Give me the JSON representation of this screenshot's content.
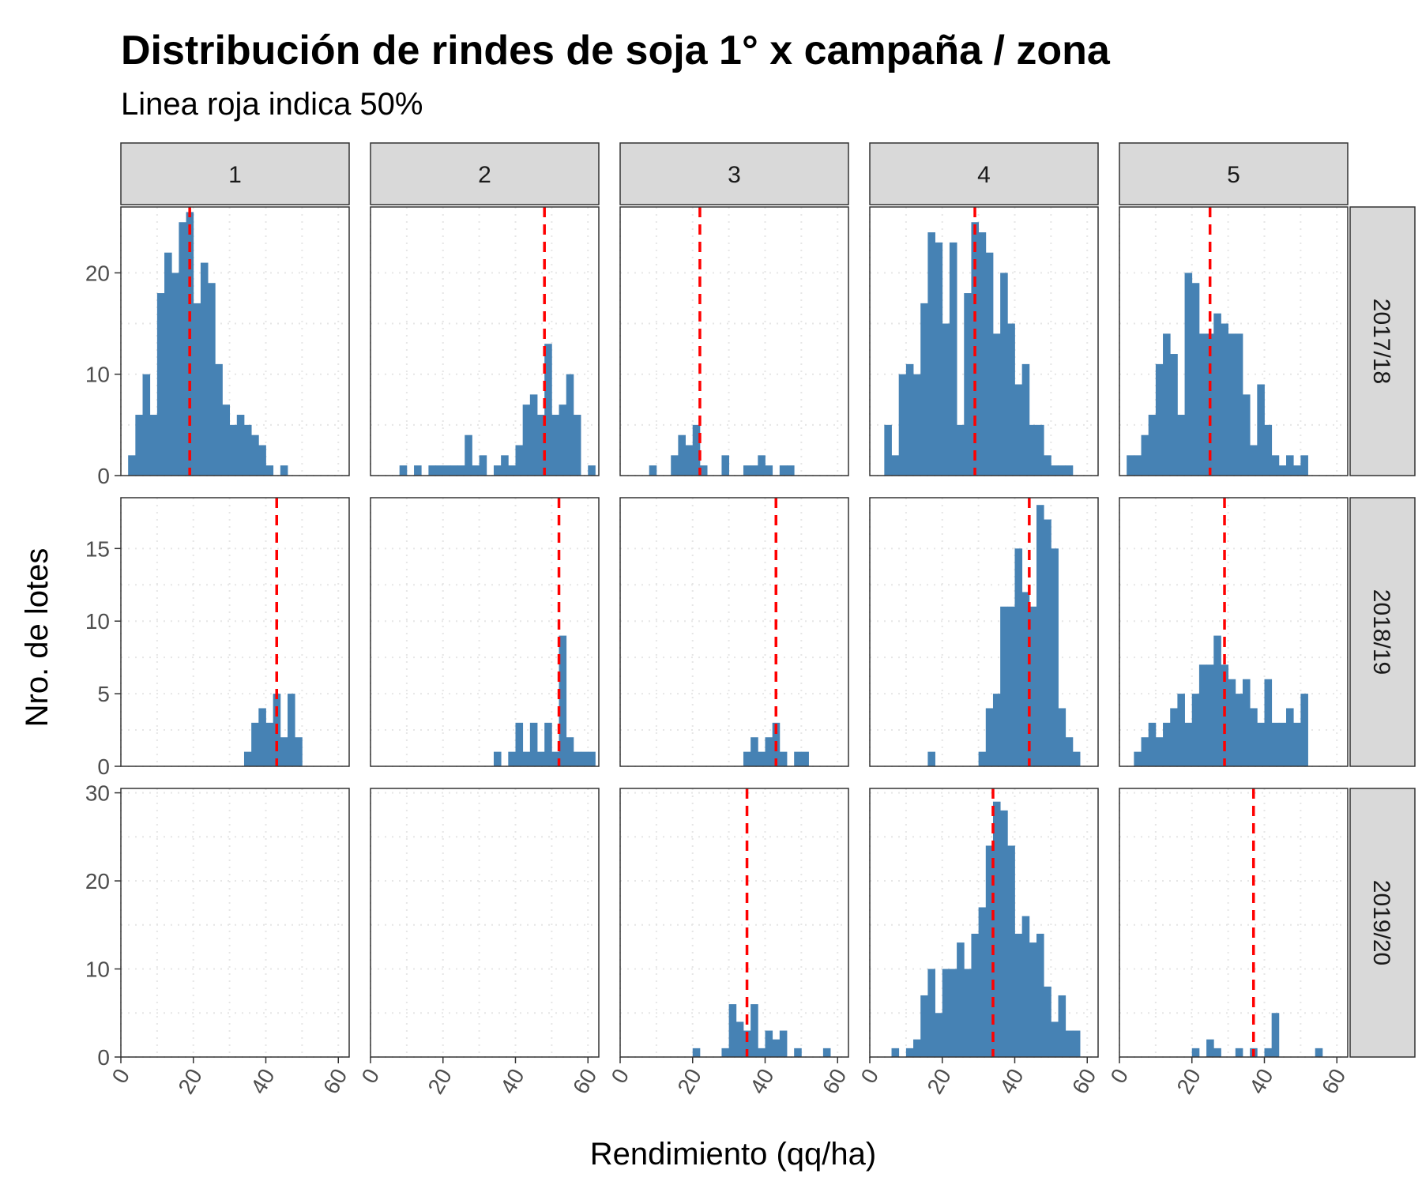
{
  "chart_data": {
    "type": "histogram-facet-grid",
    "title": "Distribución de rindes de soja 1° x campaña / zona",
    "subtitle": "Linea roja indica 50%",
    "xlabel": "Rendimiento (qq/ha)",
    "ylabel": "Nro. de lotes",
    "bin_width": 2,
    "xlim": [
      0,
      63
    ],
    "x_ticks": [
      0,
      20,
      40,
      60
    ],
    "columns": [
      "1",
      "2",
      "3",
      "4",
      "5"
    ],
    "rows": [
      {
        "label": "2017/18",
        "ylim": [
          0,
          26.5
        ],
        "y_ticks": [
          0,
          10,
          20
        ]
      },
      {
        "label": "2018/19",
        "ylim": [
          0,
          18.5
        ],
        "y_ticks": [
          0,
          5,
          10,
          15
        ]
      },
      {
        "label": "2019/20",
        "ylim": [
          0,
          30.5
        ],
        "y_ticks": [
          0,
          10,
          20,
          30
        ]
      }
    ],
    "bar_color": "#4682b4",
    "median_line_color": "#ff0000",
    "panels": [
      [
        {
          "median": 19,
          "bins": [
            [
              2,
              2
            ],
            [
              4,
              6
            ],
            [
              6,
              10
            ],
            [
              8,
              6
            ],
            [
              10,
              18
            ],
            [
              12,
              22
            ],
            [
              14,
              20
            ],
            [
              16,
              25
            ],
            [
              18,
              26
            ],
            [
              20,
              17
            ],
            [
              22,
              21
            ],
            [
              24,
              19
            ],
            [
              26,
              11
            ],
            [
              28,
              7
            ],
            [
              30,
              5
            ],
            [
              32,
              6
            ],
            [
              34,
              5
            ],
            [
              36,
              4
            ],
            [
              38,
              3
            ],
            [
              40,
              1
            ],
            [
              44,
              1
            ]
          ]
        },
        {
          "median": 48,
          "bins": [
            [
              8,
              1
            ],
            [
              12,
              1
            ],
            [
              16,
              1
            ],
            [
              18,
              1
            ],
            [
              20,
              1
            ],
            [
              22,
              1
            ],
            [
              24,
              1
            ],
            [
              26,
              4
            ],
            [
              28,
              1
            ],
            [
              30,
              2
            ],
            [
              34,
              1
            ],
            [
              36,
              2
            ],
            [
              38,
              1
            ],
            [
              40,
              3
            ],
            [
              42,
              7
            ],
            [
              44,
              8
            ],
            [
              46,
              6
            ],
            [
              48,
              13
            ],
            [
              50,
              6
            ],
            [
              52,
              7
            ],
            [
              54,
              10
            ],
            [
              56,
              6
            ],
            [
              60,
              1
            ]
          ]
        },
        {
          "median": 22,
          "bins": [
            [
              8,
              1
            ],
            [
              14,
              2
            ],
            [
              16,
              4
            ],
            [
              18,
              3
            ],
            [
              20,
              5
            ],
            [
              22,
              1
            ],
            [
              28,
              2
            ],
            [
              34,
              1
            ],
            [
              36,
              1
            ],
            [
              38,
              2
            ],
            [
              40,
              1
            ],
            [
              44,
              1
            ],
            [
              46,
              1
            ]
          ]
        },
        {
          "median": 29,
          "bins": [
            [
              4,
              5
            ],
            [
              6,
              2
            ],
            [
              8,
              10
            ],
            [
              10,
              11
            ],
            [
              12,
              10
            ],
            [
              14,
              17
            ],
            [
              16,
              24
            ],
            [
              18,
              23
            ],
            [
              20,
              15
            ],
            [
              22,
              23
            ],
            [
              24,
              5
            ],
            [
              26,
              18
            ],
            [
              28,
              25
            ],
            [
              30,
              24
            ],
            [
              32,
              22
            ],
            [
              34,
              14
            ],
            [
              36,
              20
            ],
            [
              38,
              15
            ],
            [
              40,
              9
            ],
            [
              42,
              11
            ],
            [
              44,
              5
            ],
            [
              46,
              5
            ],
            [
              48,
              2
            ],
            [
              50,
              1
            ],
            [
              52,
              1
            ],
            [
              54,
              1
            ]
          ]
        },
        {
          "median": 25,
          "bins": [
            [
              2,
              2
            ],
            [
              4,
              2
            ],
            [
              6,
              4
            ],
            [
              8,
              6
            ],
            [
              10,
              11
            ],
            [
              12,
              14
            ],
            [
              14,
              12
            ],
            [
              16,
              6
            ],
            [
              18,
              20
            ],
            [
              20,
              19
            ],
            [
              22,
              14
            ],
            [
              24,
              14
            ],
            [
              26,
              16
            ],
            [
              28,
              15
            ],
            [
              30,
              14
            ],
            [
              32,
              14
            ],
            [
              34,
              8
            ],
            [
              36,
              3
            ],
            [
              38,
              9
            ],
            [
              40,
              5
            ],
            [
              42,
              2
            ],
            [
              44,
              1
            ],
            [
              46,
              2
            ],
            [
              48,
              1
            ],
            [
              50,
              2
            ]
          ]
        }
      ],
      [
        {
          "median": 43,
          "bins": [
            [
              34,
              1
            ],
            [
              36,
              3
            ],
            [
              38,
              4
            ],
            [
              40,
              3
            ],
            [
              42,
              5
            ],
            [
              44,
              2
            ],
            [
              46,
              5
            ],
            [
              48,
              2
            ]
          ]
        },
        {
          "median": 52,
          "bins": [
            [
              34,
              1
            ],
            [
              38,
              1
            ],
            [
              40,
              3
            ],
            [
              42,
              1
            ],
            [
              44,
              3
            ],
            [
              46,
              1
            ],
            [
              48,
              3
            ],
            [
              50,
              1
            ],
            [
              52,
              9
            ],
            [
              54,
              2
            ],
            [
              56,
              1
            ],
            [
              58,
              1
            ],
            [
              60,
              1
            ]
          ]
        },
        {
          "median": 43,
          "bins": [
            [
              34,
              1
            ],
            [
              36,
              2
            ],
            [
              38,
              1
            ],
            [
              40,
              2
            ],
            [
              42,
              3
            ],
            [
              44,
              1
            ],
            [
              48,
              1
            ],
            [
              50,
              1
            ]
          ]
        },
        {
          "median": 44,
          "bins": [
            [
              16,
              1
            ],
            [
              30,
              1
            ],
            [
              32,
              4
            ],
            [
              34,
              5
            ],
            [
              36,
              11
            ],
            [
              38,
              11
            ],
            [
              40,
              15
            ],
            [
              42,
              12
            ],
            [
              44,
              11
            ],
            [
              46,
              18
            ],
            [
              48,
              17
            ],
            [
              50,
              15
            ],
            [
              52,
              4
            ],
            [
              54,
              2
            ],
            [
              56,
              1
            ]
          ]
        },
        {
          "median": 29,
          "bins": [
            [
              4,
              1
            ],
            [
              6,
              2
            ],
            [
              8,
              3
            ],
            [
              10,
              2
            ],
            [
              12,
              3
            ],
            [
              14,
              4
            ],
            [
              16,
              5
            ],
            [
              18,
              3
            ],
            [
              20,
              5
            ],
            [
              22,
              7
            ],
            [
              24,
              7
            ],
            [
              26,
              9
            ],
            [
              28,
              7
            ],
            [
              30,
              6
            ],
            [
              32,
              5
            ],
            [
              34,
              6
            ],
            [
              36,
              4
            ],
            [
              38,
              3
            ],
            [
              40,
              6
            ],
            [
              42,
              3
            ],
            [
              44,
              3
            ],
            [
              46,
              4
            ],
            [
              48,
              3
            ],
            [
              50,
              5
            ]
          ]
        }
      ],
      [
        {
          "median": null,
          "bins": []
        },
        {
          "median": null,
          "bins": []
        },
        {
          "median": 35,
          "bins": [
            [
              20,
              1
            ],
            [
              28,
              1
            ],
            [
              30,
              6
            ],
            [
              32,
              4
            ],
            [
              34,
              3
            ],
            [
              36,
              6
            ],
            [
              38,
              1
            ],
            [
              40,
              3
            ],
            [
              42,
              2
            ],
            [
              44,
              3
            ],
            [
              48,
              1
            ],
            [
              56,
              1
            ]
          ]
        },
        {
          "median": 34,
          "bins": [
            [
              6,
              1
            ],
            [
              10,
              1
            ],
            [
              12,
              2
            ],
            [
              14,
              7
            ],
            [
              16,
              10
            ],
            [
              18,
              5
            ],
            [
              20,
              10
            ],
            [
              22,
              10
            ],
            [
              24,
              13
            ],
            [
              26,
              10
            ],
            [
              28,
              14
            ],
            [
              30,
              17
            ],
            [
              32,
              24
            ],
            [
              34,
              29
            ],
            [
              36,
              28
            ],
            [
              38,
              24
            ],
            [
              40,
              14
            ],
            [
              42,
              16
            ],
            [
              44,
              13
            ],
            [
              46,
              14
            ],
            [
              48,
              8
            ],
            [
              50,
              4
            ],
            [
              52,
              7
            ],
            [
              54,
              3
            ],
            [
              56,
              3
            ]
          ]
        },
        {
          "median": 37,
          "bins": [
            [
              20,
              1
            ],
            [
              24,
              2
            ],
            [
              26,
              1
            ],
            [
              32,
              1
            ],
            [
              36,
              1
            ],
            [
              40,
              1
            ],
            [
              42,
              5
            ],
            [
              54,
              1
            ]
          ]
        }
      ]
    ]
  }
}
